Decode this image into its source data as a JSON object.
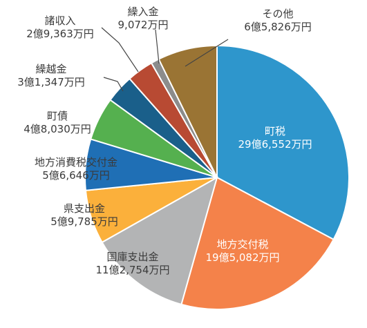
{
  "chart_data": {
    "type": "pie",
    "start": "12 o'clock",
    "direction": "clockwise",
    "slices": [
      {
        "name": "町税",
        "value_text": "29億6,552万円",
        "value": 2965520000,
        "color": "#2e96cc"
      },
      {
        "name": "地方交付税",
        "value_text": "19億5,082万円",
        "value": 1950820000,
        "color": "#f4824a"
      },
      {
        "name": "国庫支出金",
        "value_text": "11億2,754万円",
        "value": 1127540000,
        "color": "#b3b4b5"
      },
      {
        "name": "県支出金",
        "value_text": "5億9,785万円",
        "value": 597850000,
        "color": "#fbb03b"
      },
      {
        "name": "地方消費税交付金",
        "value_text": "5億6,646万円",
        "value": 566460000,
        "color": "#1f6fb5"
      },
      {
        "name": "町債",
        "value_text": "4億8,030万円",
        "value": 480300000,
        "color": "#55b04f"
      },
      {
        "name": "繰越金",
        "value_text": "3億1,347万円",
        "value": 313470000,
        "color": "#1a5f8a"
      },
      {
        "name": "諸収入",
        "value_text": "2億9,363万円",
        "value": 293630000,
        "color": "#b84a33"
      },
      {
        "name": "繰入金",
        "value_text": "9,072万円",
        "value": 90720000,
        "color": "#8c8c8c"
      },
      {
        "name": "その他",
        "value_text": "6億5,826万円",
        "value": 658260000,
        "color": "#9a7434"
      }
    ]
  }
}
